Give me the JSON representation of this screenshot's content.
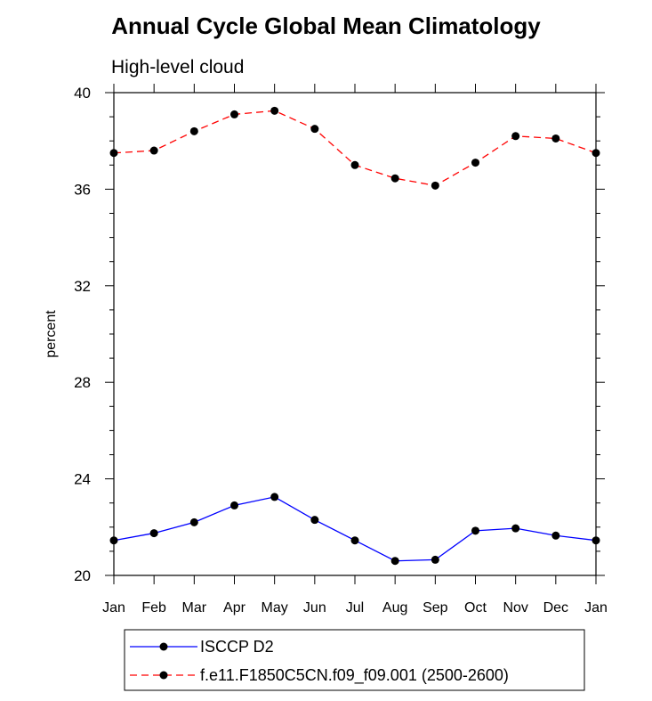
{
  "chart_data": {
    "type": "line",
    "title": "Annual Cycle Global Mean Climatology",
    "subtitle": "High-level cloud",
    "xlabel": "",
    "ylabel": "percent",
    "categories": [
      "Jan",
      "Feb",
      "Mar",
      "Apr",
      "May",
      "Jun",
      "Jul",
      "Aug",
      "Sep",
      "Oct",
      "Nov",
      "Dec",
      "Jan"
    ],
    "ylim": [
      20,
      40
    ],
    "yticks": [
      20,
      24,
      28,
      32,
      36,
      40
    ],
    "grid": false,
    "legend_position": "bottom",
    "series": [
      {
        "name": "ISCCP D2",
        "color": "#0000ff",
        "dash": "solid",
        "values": [
          21.45,
          21.75,
          22.2,
          22.9,
          23.25,
          22.3,
          21.45,
          20.6,
          20.65,
          21.85,
          21.95,
          21.65,
          21.45
        ]
      },
      {
        "name": "f.e11.F1850C5CN.f09_f09.001 (2500-2600)",
        "color": "#ff0000",
        "dash": "dashed",
        "values": [
          37.5,
          37.6,
          38.4,
          39.1,
          39.25,
          38.5,
          37.0,
          36.45,
          36.15,
          37.1,
          38.2,
          38.1,
          37.5
        ]
      }
    ]
  }
}
